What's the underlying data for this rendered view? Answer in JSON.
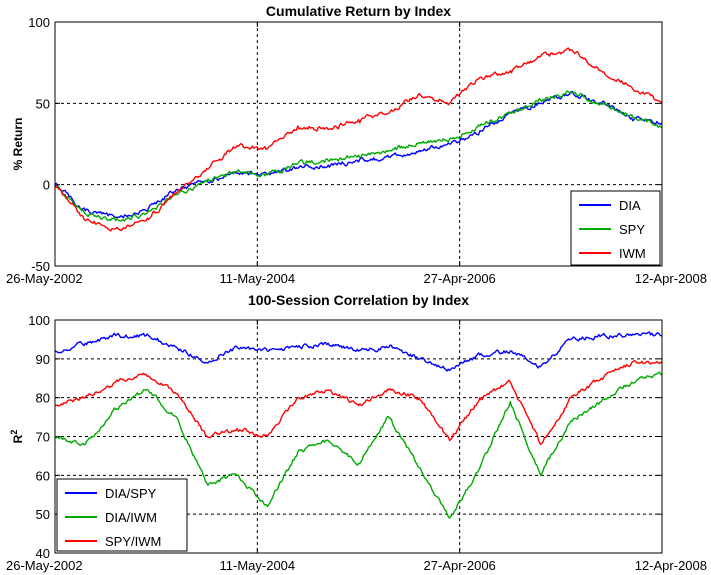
{
  "chart_data": [
    {
      "type": "line",
      "title": "Cumulative Return by Index",
      "xlabel": "",
      "ylabel": "% Return",
      "ylim": [
        -50,
        100
      ],
      "yticks": [
        "100",
        "50",
        "0",
        "-50"
      ],
      "xticks": [
        "26-May-2002",
        "11-May-2004",
        "27-Apr-2006",
        "12-Apr-2008"
      ],
      "grid": true,
      "legend": "bottom-right",
      "x": [
        0,
        0.05,
        0.1,
        0.15,
        0.2,
        0.25,
        0.3,
        0.35,
        0.4,
        0.45,
        0.5,
        0.55,
        0.6,
        0.65,
        0.7,
        0.75,
        0.8,
        0.85,
        0.9,
        0.95,
        1
      ],
      "series": [
        {
          "name": "DIA",
          "color": "#0000ff",
          "values": [
            0,
            -16,
            -20,
            -16,
            -3,
            2,
            7,
            6,
            10,
            12,
            14,
            17,
            21,
            25,
            33,
            44,
            50,
            57,
            50,
            41,
            38
          ]
        },
        {
          "name": "SPY",
          "color": "#00aa00",
          "values": [
            0,
            -18,
            -22,
            -18,
            -6,
            2,
            8,
            6,
            13,
            15,
            18,
            21,
            26,
            28,
            36,
            44,
            52,
            57,
            50,
            43,
            35
          ]
        },
        {
          "name": "IWM",
          "color": "#ff0000",
          "values": [
            0,
            -22,
            -27,
            -22,
            -5,
            10,
            24,
            22,
            36,
            34,
            40,
            44,
            56,
            50,
            66,
            70,
            79,
            83,
            70,
            60,
            50
          ]
        }
      ]
    },
    {
      "type": "line",
      "title": "100-Session Correlation by Index",
      "xlabel": "",
      "ylabel": "R",
      "ylabel_sup": "2",
      "ylim": [
        40,
        100
      ],
      "yticks": [
        "100",
        "90",
        "80",
        "70",
        "60",
        "50",
        "40"
      ],
      "xticks": [
        "26-May-2002",
        "11-May-2004",
        "27-Apr-2006",
        "12-Apr-2008"
      ],
      "grid": true,
      "legend": "bottom-left",
      "x": [
        0,
        0.05,
        0.1,
        0.15,
        0.2,
        0.25,
        0.3,
        0.35,
        0.4,
        0.45,
        0.5,
        0.55,
        0.6,
        0.65,
        0.7,
        0.75,
        0.8,
        0.85,
        0.9,
        0.95,
        1
      ],
      "series": [
        {
          "name": "DIA/SPY",
          "color": "#0000ff",
          "values": [
            92,
            94,
            96,
            96,
            93,
            89,
            93,
            92,
            93,
            94,
            92,
            93,
            90,
            87,
            91,
            92,
            88,
            95,
            96,
            96,
            96
          ]
        },
        {
          "name": "DIA/IWM",
          "color": "#00aa00",
          "values": [
            70,
            68,
            77,
            82,
            75,
            58,
            60,
            52,
            66,
            69,
            63,
            75,
            62,
            49,
            62,
            79,
            60,
            74,
            79,
            84,
            86
          ]
        },
        {
          "name": "SPY/IWM",
          "color": "#ff0000",
          "values": [
            78,
            80,
            84,
            86,
            81,
            70,
            72,
            70,
            80,
            82,
            78,
            82,
            80,
            69,
            80,
            84,
            68,
            80,
            85,
            89,
            89
          ]
        }
      ]
    }
  ]
}
